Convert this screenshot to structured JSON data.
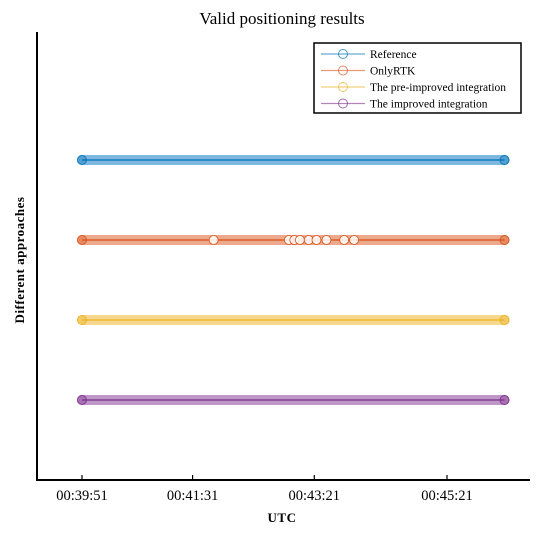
{
  "chart_data": {
    "type": "scatter",
    "title": "Valid positioning results",
    "xlabel": "UTC",
    "ylabel": "Different approaches",
    "x_ticks": [
      "00:39:51",
      "00:41:31",
      "00:43:21",
      "00:45:21"
    ],
    "x_tick_seconds": [
      2391,
      2491,
      2601,
      2721
    ],
    "xlim_seconds": [
      2350,
      2760
    ],
    "x_range_seconds": [
      2391,
      2773
    ],
    "grid": false,
    "legend_placement": "top-right",
    "series": [
      {
        "name": "Reference",
        "color": "#0072BD",
        "level": 4
      },
      {
        "name": "OnlyRTK",
        "color": "#D95319",
        "level": 3,
        "gap_centers_seconds": [
          2510,
          2578,
          2583,
          2588,
          2596,
          2603,
          2612,
          2628,
          2637
        ]
      },
      {
        "name": "The pre-improved integration",
        "color": "#EDB120",
        "level": 2
      },
      {
        "name": "The improved integration",
        "color": "#7E2F8E",
        "level": 1
      }
    ],
    "ylim": [
      0,
      5.6
    ]
  }
}
